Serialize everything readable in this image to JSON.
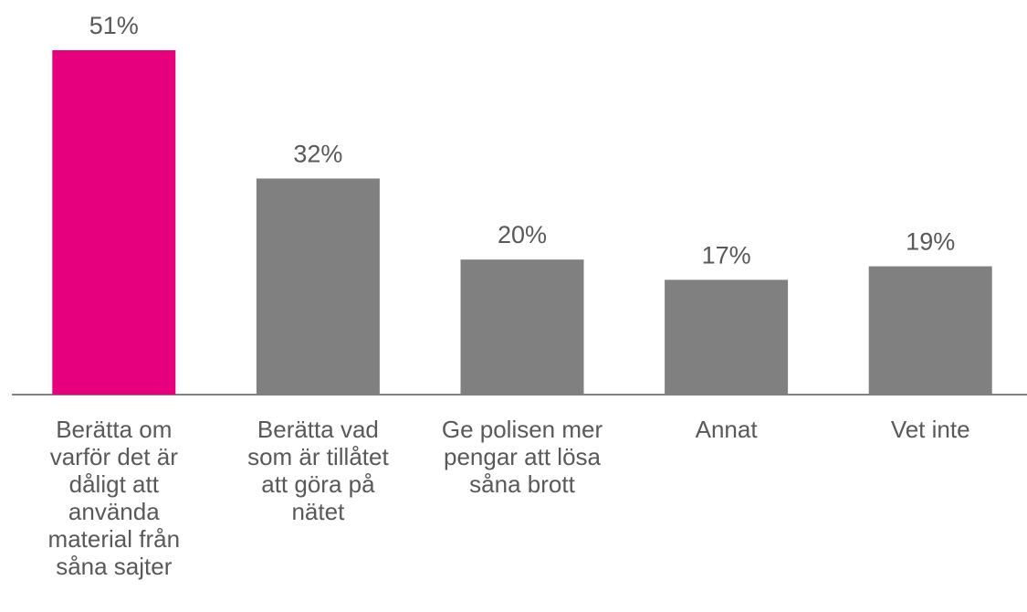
{
  "chart_data": {
    "type": "bar",
    "categories": [
      "Berätta om varför det är dåligt att använda material från såna sajter",
      "Berätta vad som är tillåtet att göra på nätet",
      "Ge polisen mer pengar att lösa såna brott",
      "Annat",
      "Vet inte"
    ],
    "values": [
      51,
      32,
      20,
      17,
      19
    ],
    "value_labels": [
      "51%",
      "32%",
      "20%",
      "17%",
      "19%"
    ],
    "colors": [
      "#e6007e",
      "#808080",
      "#808080",
      "#808080",
      "#808080"
    ]
  }
}
